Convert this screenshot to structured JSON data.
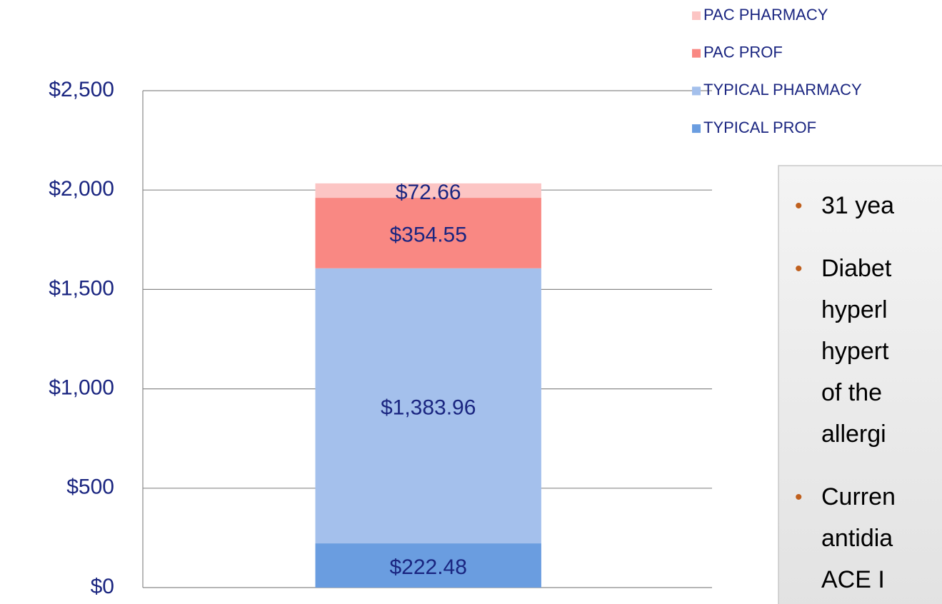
{
  "chart_data": {
    "type": "stacked_bar",
    "categories": [
      null
    ],
    "series": [
      {
        "name": "TYPICAL PROF",
        "color": "#6a9de0",
        "values": [
          222.48
        ],
        "value_labels": [
          "$222.48"
        ]
      },
      {
        "name": "TYPICAL PHARMACY",
        "color": "#a4c0ec",
        "values": [
          1383.96
        ],
        "value_labels": [
          "$1,383.96"
        ]
      },
      {
        "name": "PAC PROF",
        "color": "#f98883",
        "values": [
          354.55
        ],
        "value_labels": [
          "$354.55"
        ]
      },
      {
        "name": "PAC PHARMACY",
        "color": "#fcc5c4",
        "values": [
          72.66
        ],
        "value_labels": [
          "$72.66"
        ]
      }
    ],
    "ylim": [
      0,
      2500
    ],
    "yticks": [
      {
        "value": 0,
        "label": "$0"
      },
      {
        "value": 500,
        "label": "$500"
      },
      {
        "value": 1000,
        "label": "$1,000"
      },
      {
        "value": 1500,
        "label": "$1,500"
      },
      {
        "value": 2000,
        "label": "$2,000"
      },
      {
        "value": 2500,
        "label": "$2,500"
      }
    ],
    "grid": true,
    "legend": "top-right"
  },
  "text_box": {
    "bullets": [
      [
        "31 yea"
      ],
      [
        "Diabet",
        "hyperl",
        "hypert",
        "of the",
        "allergi"
      ],
      [
        "Curren",
        "antidia",
        "ACE I"
      ]
    ]
  }
}
